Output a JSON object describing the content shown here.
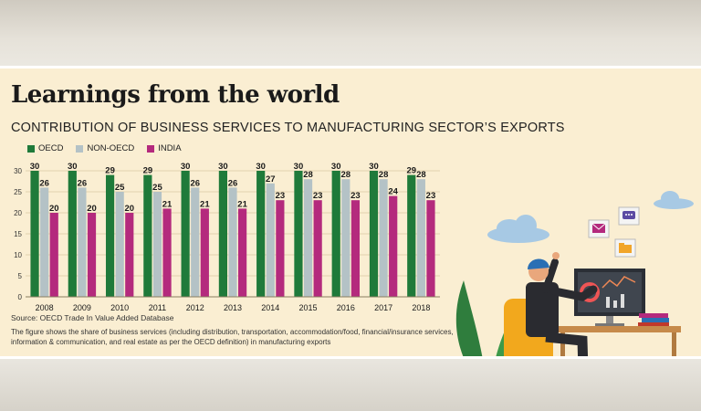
{
  "headline": "Learnings from the world",
  "subtitle": "CONTRIBUTION OF BUSINESS SERVICES TO MANUFACTURING SECTOR’S EXPORTS",
  "source": "Source: OECD Trade In Value Added Database",
  "note": "The figure shows the share of business services (including distribution, transportation, accommodation/food, financial/insurance services, information & communication, and real estate as per the OECD definition) in manufacturing exports",
  "colors": {
    "oecd": "#1f7a3a",
    "non_oecd": "#b4c2c6",
    "india": "#b42a7d",
    "panel": "#faeed2",
    "grid": "#e2d2ae"
  },
  "illustration": {
    "icons": [
      "mail-icon",
      "chat-icon",
      "folder-icon",
      "cloud-icon"
    ],
    "subject": "person working at desk with monitor, plant and books"
  },
  "chart_data": {
    "type": "bar",
    "categories": [
      "2008",
      "2009",
      "2010",
      "2011",
      "2012",
      "2013",
      "2014",
      "2015",
      "2016",
      "2017",
      "2018"
    ],
    "series": [
      {
        "name": "OECD",
        "values": [
          30,
          30,
          29,
          29,
          30,
          30,
          30,
          30,
          30,
          30,
          29
        ]
      },
      {
        "name": "NON-OECD",
        "values": [
          26,
          26,
          25,
          25,
          26,
          26,
          27,
          28,
          28,
          28,
          28
        ]
      },
      {
        "name": "INDIA",
        "values": [
          20,
          20,
          20,
          21,
          21,
          21,
          23,
          23,
          23,
          24,
          23
        ]
      }
    ],
    "y_ticks": [
      0,
      5,
      10,
      15,
      20,
      25,
      30
    ],
    "ylim": [
      0,
      30
    ],
    "legend": "top-left",
    "grid": true,
    "data_labels": true
  }
}
